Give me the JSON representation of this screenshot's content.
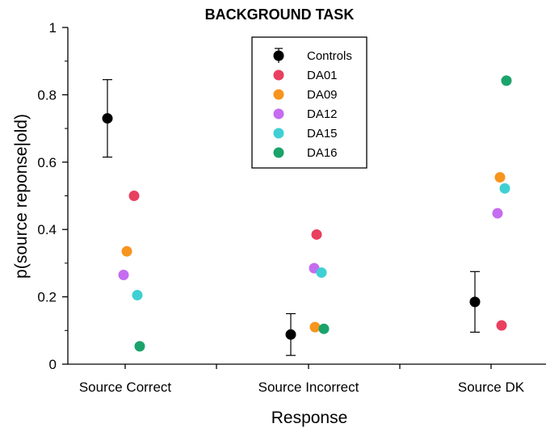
{
  "chart_data": {
    "type": "scatter",
    "title": "BACKGROUND TASK",
    "xlabel": "Response",
    "ylabel": "p(source reponse|old)",
    "categories": [
      "Source Correct",
      "Source Incorrect",
      "Source DK"
    ],
    "ylim": [
      0,
      1
    ],
    "yticks": [
      "0",
      "0.2",
      "0.4",
      "0.6",
      "0.8",
      "1"
    ],
    "legend_position": "top-center",
    "grid": false,
    "series": [
      {
        "name": "Controls",
        "color": "#000000",
        "values": [
          0.73,
          0.088,
          0.185
        ],
        "error": [
          0.115,
          0.062,
          0.09
        ]
      },
      {
        "name": "DA01",
        "color": "#e8405e",
        "values": [
          0.5,
          0.385,
          0.115
        ]
      },
      {
        "name": "DA09",
        "color": "#f7941d",
        "values": [
          0.335,
          0.11,
          0.555
        ]
      },
      {
        "name": "DA12",
        "color": "#c56cf0",
        "values": [
          0.265,
          0.285,
          0.448
        ]
      },
      {
        "name": "DA15",
        "color": "#3fd0d4",
        "values": [
          0.205,
          0.272,
          0.522
        ]
      },
      {
        "name": "DA16",
        "color": "#1aa36b",
        "values": [
          0.053,
          0.105,
          0.842
        ]
      }
    ]
  }
}
